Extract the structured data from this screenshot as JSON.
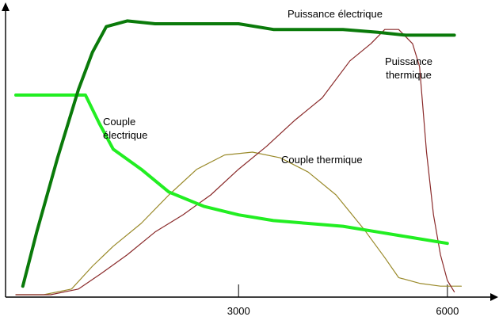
{
  "chart_data": {
    "type": "line",
    "title": "",
    "xlabel": "",
    "ylabel": "",
    "x_ticks": [
      {
        "value": 3000,
        "label": "3000"
      },
      {
        "value": 6000,
        "label": "6000"
      }
    ],
    "xlim": [
      -200,
      6400
    ],
    "ylim": [
      0,
      100
    ],
    "grid": false,
    "legend": "none (series labelled directly on the plot)",
    "series": [
      {
        "name": "Puissance électrique",
        "color": "#0a7a0a",
        "label_lines": [
          "Puissance électrique"
        ],
        "x": [
          -100,
          100,
          400,
          700,
          900,
          1100,
          1400,
          1800,
          2400,
          3000,
          3500,
          4000,
          4500,
          5000,
          5400,
          5800,
          6100
        ],
        "y": [
          3,
          22,
          48,
          72,
          85,
          94,
          96,
          95,
          95,
          95,
          93,
          93,
          93,
          92,
          91,
          91,
          91
        ]
      },
      {
        "name": "Couple électrique",
        "color": "#22ee22",
        "label_lines": [
          "Couple",
          "électrique"
        ],
        "x": [
          -200,
          0,
          300,
          600,
          800,
          1000,
          1200,
          1600,
          2000,
          2500,
          3000,
          3500,
          4000,
          4500,
          5000,
          5500,
          6000
        ],
        "y": [
          70,
          70,
          70,
          70,
          70,
          60,
          51,
          44,
          36,
          31,
          28,
          26,
          25,
          24,
          22,
          20,
          18
        ]
      },
      {
        "name": "Couple thermique",
        "color": "#9a8a2a",
        "label_lines": [
          "Couple thermique"
        ],
        "x": [
          -200,
          200,
          600,
          900,
          1200,
          1600,
          2000,
          2400,
          2800,
          3200,
          3600,
          4000,
          4400,
          4800,
          5100,
          5300,
          5600,
          5900,
          6200
        ],
        "y": [
          0,
          0,
          2,
          10,
          17,
          25,
          35,
          44,
          49,
          50,
          48,
          43,
          35,
          23,
          13,
          6,
          4,
          3,
          3
        ]
      },
      {
        "name": "Puissance thermique",
        "color": "#8a2a2a",
        "label_lines": [
          "Puissance",
          "thermique"
        ],
        "x": [
          -200,
          300,
          700,
          1000,
          1400,
          1800,
          2200,
          2600,
          3000,
          3400,
          3800,
          4200,
          4600,
          4900,
          5100,
          5300,
          5500,
          5600,
          5700,
          5800,
          5900,
          6000,
          6100
        ],
        "y": [
          0,
          0,
          2,
          7,
          14,
          22,
          28,
          35,
          44,
          52,
          61,
          69,
          82,
          88,
          93,
          93,
          88,
          80,
          50,
          28,
          14,
          5,
          1
        ]
      }
    ]
  }
}
